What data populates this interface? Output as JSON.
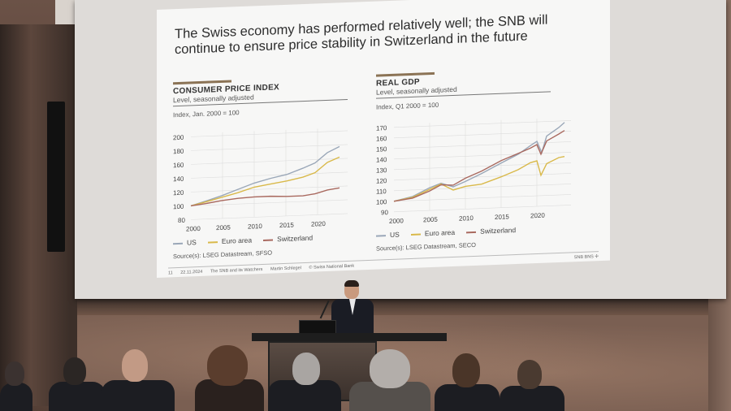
{
  "slide": {
    "title_line1": "The Swiss economy has performed relatively well; the SNB will",
    "title_line2": "continue to ensure price stability in Switzerland in the future",
    "left_panel": {
      "title": "CONSUMER PRICE INDEX",
      "subtitle": "Level, seasonally adjusted",
      "unit": "Index, Jan. 2000 = 100",
      "y_ticks": [
        "200",
        "180",
        "160",
        "140",
        "120",
        "100",
        "80"
      ],
      "x_ticks": [
        "2000",
        "2005",
        "2010",
        "2015",
        "2020"
      ],
      "source": "Source(s): LSEG Datastream, SFSO"
    },
    "right_panel": {
      "title": "REAL GDP",
      "subtitle": "Level, seasonally adjusted",
      "unit": "Index, Q1 2000 = 100",
      "y_ticks": [
        "170",
        "160",
        "150",
        "140",
        "130",
        "120",
        "110",
        "100",
        "90"
      ],
      "x_ticks": [
        "2000",
        "2005",
        "2010",
        "2015",
        "2020"
      ],
      "source": "Source(s): LSEG Datastream, SECO"
    },
    "legend": {
      "us": "US",
      "euro": "Euro area",
      "ch": "Switzerland"
    },
    "series_colors": {
      "us": "#9aa7b8",
      "euro": "#d9b94a",
      "ch": "#a9695f"
    },
    "footer": {
      "page": "11",
      "date": "22.11.2024",
      "event": "The SNB and its Watchers",
      "speaker": "Martin Schlegel",
      "copyright": "© Swiss National Bank",
      "brand": "SNB BNS ✢"
    }
  }
}
